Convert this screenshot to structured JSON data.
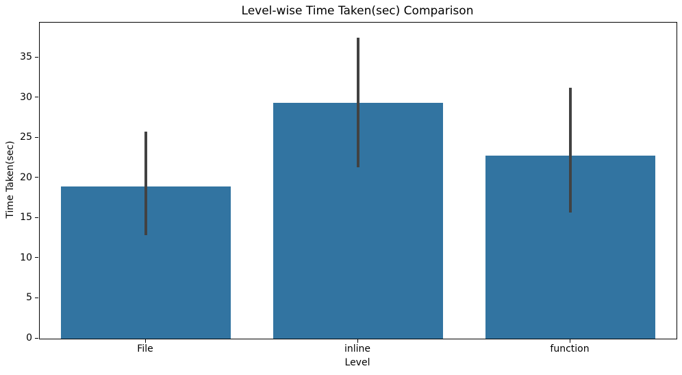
{
  "chart_data": {
    "type": "bar",
    "title": "Level-wise Time Taken(sec) Comparison",
    "xlabel": "Level",
    "ylabel": "Time Taken(sec)",
    "categories": [
      "File",
      "inline",
      "function"
    ],
    "values": [
      19.0,
      29.4,
      22.8
    ],
    "error_low": [
      12.9,
      21.4,
      15.7
    ],
    "error_high": [
      25.8,
      37.5,
      31.3
    ],
    "ylim": [
      0,
      39.4
    ],
    "yticks": [
      0,
      5,
      10,
      15,
      20,
      25,
      30,
      35
    ],
    "bar_color": "#3274a1",
    "error_color": "#424242",
    "spine_color": "#000000",
    "bar_width_fraction": 0.8,
    "legend": "none",
    "grid": "off"
  }
}
